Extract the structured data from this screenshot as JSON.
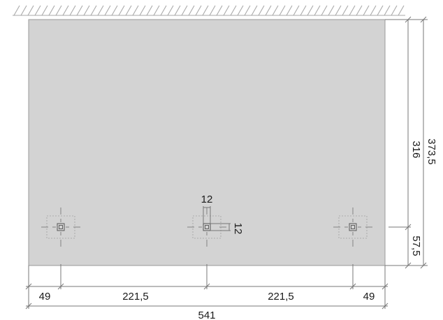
{
  "panel": {
    "fill": "#d3d3d3",
    "outline": "#9a9a9a"
  },
  "dimensions": {
    "overall_height": "373,5",
    "upper_height": "316",
    "lower_height": "57,5",
    "left_edge_offset": "49",
    "left_span": "221,5",
    "right_span": "221,5",
    "right_edge_offset": "49",
    "overall_width": "541",
    "bracket_width": "12",
    "bracket_height": "12"
  }
}
